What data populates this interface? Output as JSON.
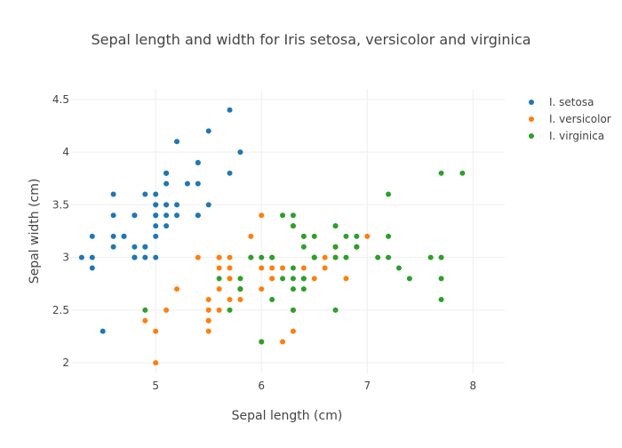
{
  "chart_data": {
    "type": "scatter",
    "title": "Sepal length and width for Iris setosa, versicolor and virginica",
    "xlabel": "Sepal length (cm)",
    "ylabel": "Sepal width (cm)",
    "xlim": [
      4.2,
      8.3
    ],
    "ylim": [
      1.9,
      4.6
    ],
    "x_ticks": [
      5,
      6,
      7,
      8
    ],
    "y_ticks": [
      2,
      2.5,
      3,
      3.5,
      4,
      4.5
    ],
    "grid": true,
    "legend_position": "top-right",
    "series": [
      {
        "name": "I. setosa",
        "color": "#1f77b4",
        "x": [
          5.1,
          4.9,
          4.7,
          4.6,
          5.0,
          5.4,
          4.6,
          5.0,
          4.4,
          4.9,
          5.4,
          4.8,
          4.8,
          4.3,
          5.8,
          5.7,
          5.4,
          5.1,
          5.7,
          5.1,
          5.4,
          5.1,
          4.6,
          5.1,
          4.8,
          5.0,
          5.0,
          5.2,
          5.2,
          4.7,
          4.8,
          5.4,
          5.2,
          5.5,
          4.9,
          5.0,
          5.5,
          4.9,
          4.4,
          5.1,
          5.0,
          4.5,
          4.4,
          5.0,
          5.1,
          4.8,
          5.1,
          4.6,
          5.3,
          5.0
        ],
        "y": [
          3.5,
          3.0,
          3.2,
          3.1,
          3.6,
          3.9,
          3.4,
          3.4,
          2.9,
          3.1,
          3.7,
          3.4,
          3.0,
          3.0,
          4.0,
          4.4,
          3.9,
          3.5,
          3.8,
          3.8,
          3.4,
          3.7,
          3.6,
          3.3,
          3.4,
          3.0,
          3.4,
          3.5,
          3.4,
          3.2,
          3.1,
          3.4,
          4.1,
          4.2,
          3.1,
          3.2,
          3.5,
          3.6,
          3.0,
          3.4,
          3.5,
          2.3,
          3.2,
          3.5,
          3.8,
          3.0,
          3.8,
          3.2,
          3.7,
          3.3
        ]
      },
      {
        "name": "I. versicolor",
        "color": "#ff7f0e",
        "x": [
          7.0,
          6.4,
          6.9,
          5.5,
          6.5,
          5.7,
          6.3,
          4.9,
          6.6,
          5.2,
          5.0,
          5.9,
          6.0,
          6.1,
          5.6,
          6.7,
          5.6,
          5.8,
          6.2,
          5.6,
          5.9,
          6.1,
          6.3,
          6.1,
          6.4,
          6.6,
          6.8,
          6.7,
          6.0,
          5.7,
          5.5,
          5.5,
          5.8,
          6.0,
          5.4,
          6.0,
          6.7,
          6.3,
          5.6,
          5.5,
          5.5,
          6.1,
          5.8,
          5.0,
          5.6,
          5.7,
          5.7,
          6.2,
          5.1,
          5.7
        ],
        "y": [
          3.2,
          3.2,
          3.1,
          2.3,
          2.8,
          2.8,
          3.3,
          2.4,
          2.9,
          2.7,
          2.0,
          3.0,
          2.2,
          2.9,
          2.9,
          3.1,
          3.0,
          2.7,
          2.2,
          2.5,
          3.2,
          2.8,
          2.5,
          2.8,
          2.9,
          3.0,
          2.8,
          3.0,
          2.9,
          2.6,
          2.4,
          2.4,
          2.7,
          2.7,
          3.0,
          3.4,
          3.1,
          2.3,
          3.0,
          2.5,
          2.6,
          3.0,
          2.6,
          2.3,
          2.7,
          3.0,
          2.9,
          2.9,
          2.5,
          2.8
        ]
      },
      {
        "name": "I. virginica",
        "color": "#2ca02c",
        "x": [
          6.3,
          5.8,
          7.1,
          6.3,
          6.5,
          7.6,
          4.9,
          7.3,
          6.7,
          7.2,
          6.5,
          6.4,
          6.8,
          5.7,
          5.8,
          6.4,
          6.5,
          7.7,
          7.7,
          6.0,
          6.9,
          5.6,
          7.7,
          6.3,
          6.7,
          7.2,
          6.2,
          6.1,
          6.4,
          7.2,
          7.4,
          7.9,
          6.4,
          6.3,
          6.1,
          7.7,
          6.3,
          6.4,
          6.0,
          6.9,
          6.7,
          6.9,
          5.8,
          6.8,
          6.7,
          6.7,
          6.3,
          6.5,
          6.2,
          5.9
        ],
        "y": [
          3.3,
          2.7,
          3.0,
          2.9,
          3.0,
          3.0,
          2.5,
          2.9,
          2.5,
          3.6,
          3.2,
          2.7,
          3.0,
          2.5,
          2.8,
          3.2,
          3.0,
          3.8,
          2.6,
          2.2,
          3.2,
          2.8,
          2.8,
          2.7,
          3.3,
          3.2,
          2.8,
          3.0,
          2.8,
          3.0,
          2.8,
          3.8,
          2.8,
          2.8,
          2.6,
          3.0,
          3.4,
          3.1,
          3.0,
          3.1,
          3.1,
          3.1,
          2.7,
          3.2,
          3.3,
          3.0,
          2.5,
          3.0,
          3.4,
          3.0
        ]
      }
    ]
  }
}
